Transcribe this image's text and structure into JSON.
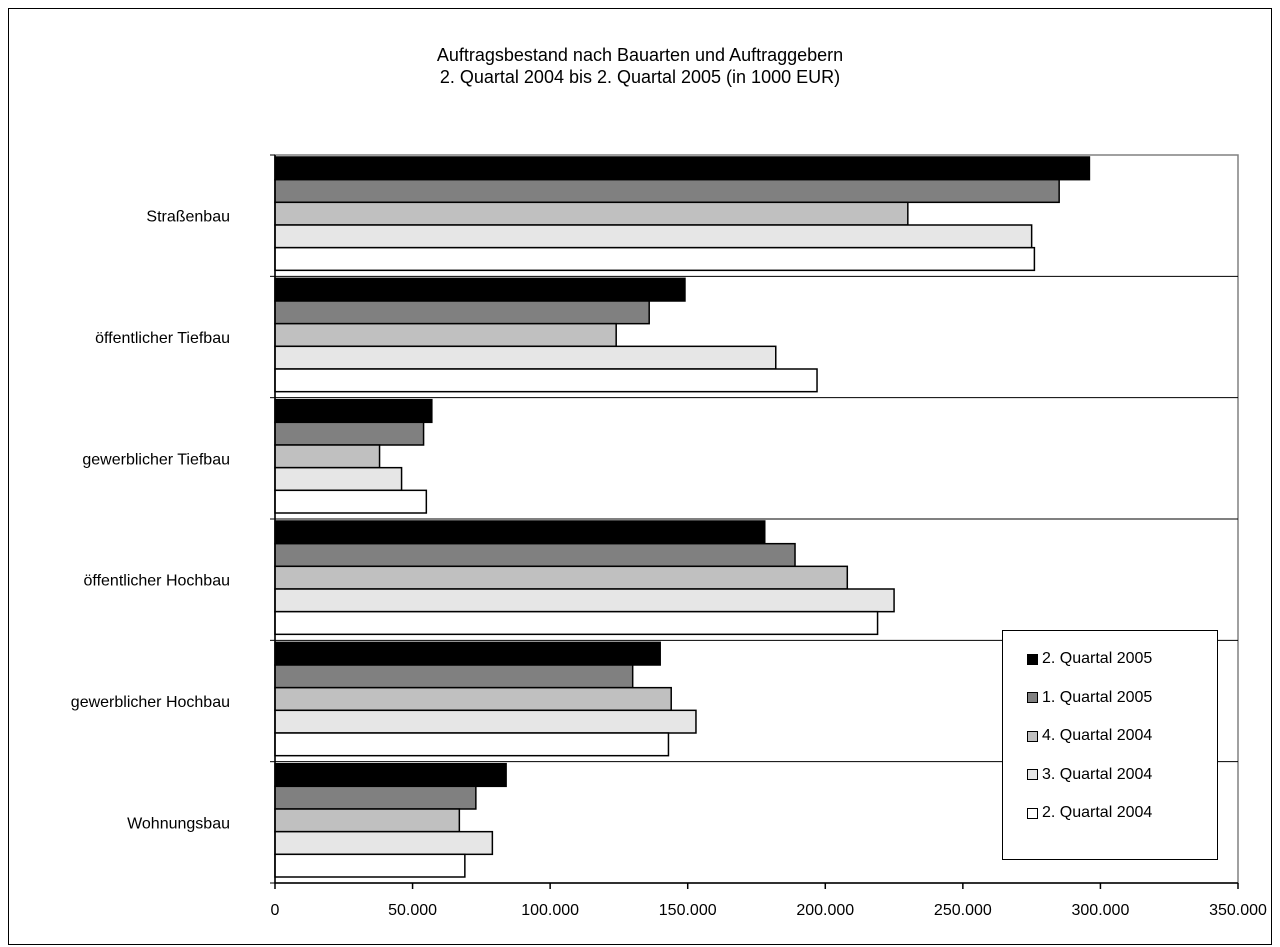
{
  "chart_data": {
    "type": "bar",
    "orientation": "horizontal",
    "title": "Auftragsbestand nach Bauarten und Auftraggebern",
    "subtitle": "2. Quartal 2004 bis 2. Quartal 2005 (in 1000 EUR)",
    "categories": [
      "Straßenbau",
      "öffentlicher Tiefbau",
      "gewerblicher Tiefbau",
      "öffentlicher Hochbau",
      "gewerblicher Hochbau",
      "Wohnungsbau"
    ],
    "series": [
      {
        "name": "2. Quartal 2005",
        "color": "#000000",
        "values": [
          296000,
          149000,
          57000,
          178000,
          140000,
          84000
        ]
      },
      {
        "name": "1. Quartal 2005",
        "color": "#808080",
        "values": [
          285000,
          136000,
          54000,
          189000,
          130000,
          73000
        ]
      },
      {
        "name": "4. Quartal 2004",
        "color": "#c0c0c0",
        "values": [
          230000,
          124000,
          38000,
          208000,
          144000,
          67000
        ]
      },
      {
        "name": "3. Quartal 2004",
        "color": "#e6e6e6",
        "values": [
          275000,
          182000,
          46000,
          225000,
          153000,
          79000
        ]
      },
      {
        "name": "2. Quartal 2004",
        "color": "#ffffff",
        "values": [
          276000,
          197000,
          55000,
          219000,
          143000,
          69000
        ]
      }
    ],
    "xlim": [
      0,
      350000
    ],
    "xticks": [
      0,
      50000,
      100000,
      150000,
      200000,
      250000,
      300000,
      350000
    ],
    "xtick_labels": [
      "0",
      "50.000",
      "100.000",
      "150.000",
      "200.000",
      "250.000",
      "300.000",
      "350.000"
    ],
    "grid": "horizontal separators between categories",
    "legend_position": "bottom-right"
  }
}
